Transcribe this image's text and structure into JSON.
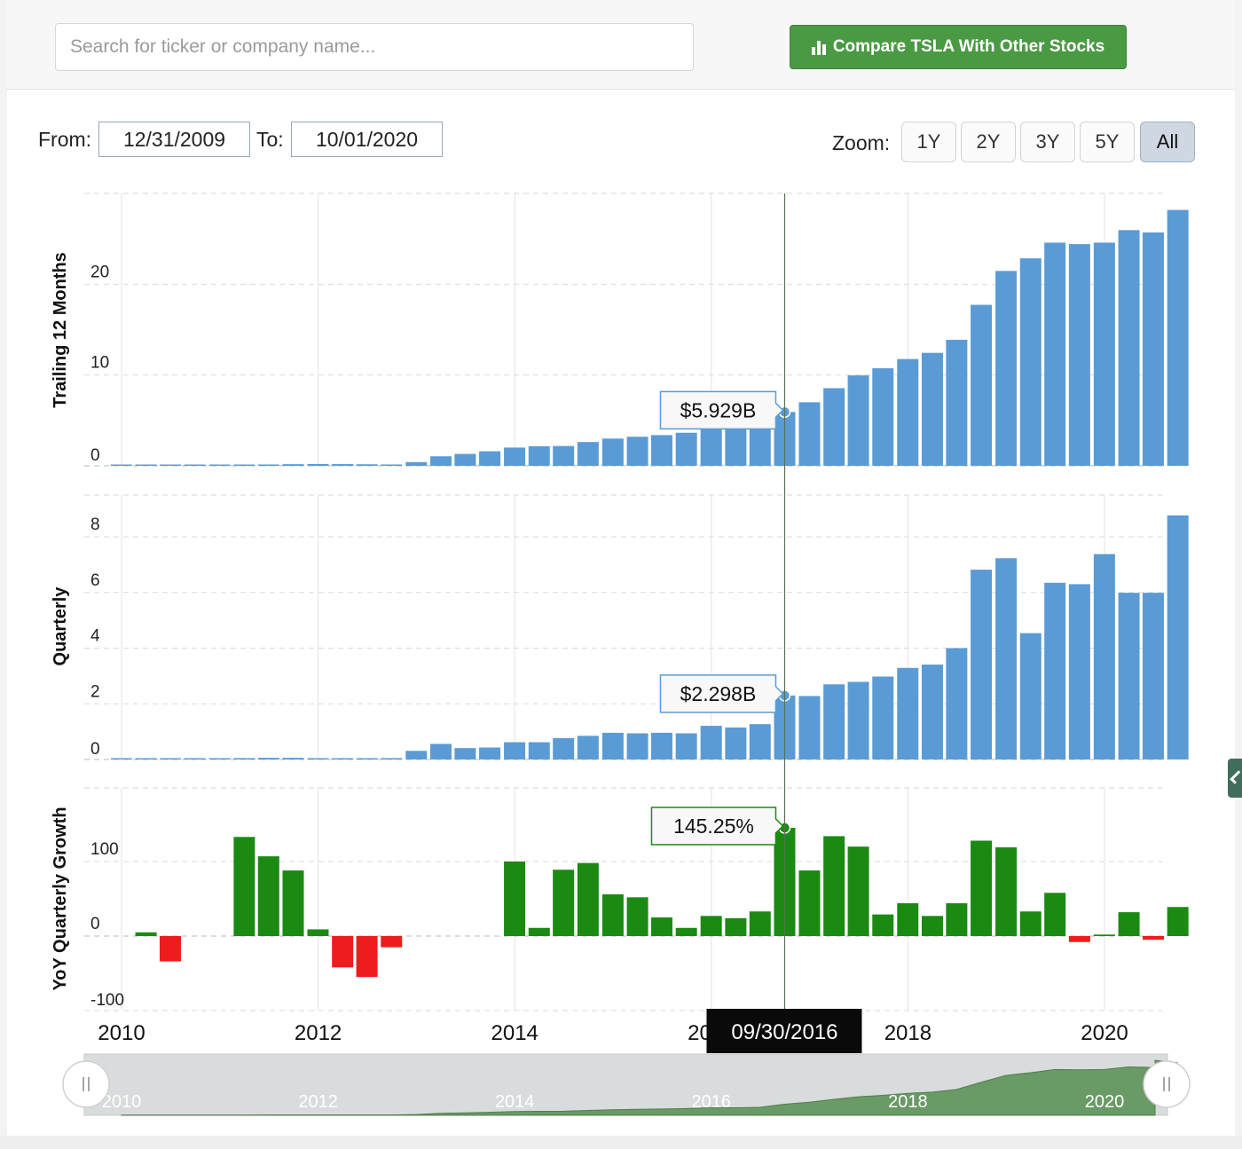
{
  "search": {
    "placeholder": "Search for ticker or company name..."
  },
  "compare_button": {
    "label": "Compare TSLA With Other Stocks",
    "icon": "bar-chart-icon"
  },
  "range": {
    "from_label": "From:",
    "from_value": "12/31/2009",
    "to_label": "To:",
    "to_value": "10/01/2020"
  },
  "zoom": {
    "label": "Zoom:",
    "options": [
      "1Y",
      "2Y",
      "3Y",
      "5Y",
      "All"
    ],
    "active": "All"
  },
  "colors": {
    "blue": "#5b9bd5",
    "green": "#1b8a12",
    "red": "#ee1c1c",
    "nav_fill": "#6a9a66",
    "button_green": "#4a9a43"
  },
  "chart_data": [
    {
      "type": "bar",
      "ylabel": "Trailing 12 Months",
      "ylim": [
        0,
        30
      ],
      "yticks": [
        0,
        10,
        20
      ],
      "dates": [
        "12/31/2009",
        "03/31/2010",
        "06/30/2010",
        "09/30/2010",
        "12/31/2010",
        "03/31/2011",
        "06/30/2011",
        "09/30/2011",
        "12/31/2011",
        "03/31/2012",
        "06/30/2012",
        "09/30/2012",
        "12/31/2012",
        "03/31/2013",
        "06/30/2013",
        "09/30/2013",
        "12/31/2013",
        "03/31/2014",
        "06/30/2014",
        "09/30/2014",
        "12/31/2014",
        "03/31/2015",
        "06/30/2015",
        "09/30/2015",
        "12/31/2015",
        "03/31/2016",
        "06/30/2016",
        "09/30/2016",
        "12/31/2016",
        "03/31/2017",
        "06/30/2017",
        "09/30/2017",
        "12/31/2017",
        "03/31/2018",
        "06/30/2018",
        "09/30/2018",
        "12/31/2018",
        "03/31/2019",
        "06/30/2019",
        "09/30/2019",
        "12/31/2019",
        "03/31/2020",
        "06/30/2020",
        "09/30/2020"
      ],
      "values": [
        0.11,
        0.11,
        0.11,
        0.12,
        0.12,
        0.13,
        0.15,
        0.18,
        0.2,
        0.19,
        0.17,
        0.15,
        0.41,
        1.05,
        1.31,
        1.6,
        2.01,
        2.15,
        2.18,
        2.62,
        3.0,
        3.2,
        3.38,
        3.64,
        4.05,
        4.04,
        4.27,
        5.93,
        7.0,
        8.55,
        9.96,
        10.74,
        11.76,
        12.44,
        13.88,
        17.73,
        21.46,
        22.85,
        24.58,
        24.42,
        24.58,
        25.96,
        25.7,
        28.18
      ],
      "highlight": {
        "date": "09/30/2016",
        "label": "$5.929B"
      }
    },
    {
      "type": "bar",
      "ylabel": "Quarterly",
      "ylim": [
        0,
        9.5
      ],
      "yticks": [
        0,
        2,
        4,
        6,
        8
      ],
      "dates": [
        "12/31/2009",
        "03/31/2010",
        "06/30/2010",
        "09/30/2010",
        "12/31/2010",
        "03/31/2011",
        "06/30/2011",
        "09/30/2011",
        "12/31/2011",
        "03/31/2012",
        "06/30/2012",
        "09/30/2012",
        "12/31/2012",
        "03/31/2013",
        "06/30/2013",
        "09/30/2013",
        "12/31/2013",
        "03/31/2014",
        "06/30/2014",
        "09/30/2014",
        "12/31/2014",
        "03/31/2015",
        "06/30/2015",
        "09/30/2015",
        "12/31/2015",
        "03/31/2016",
        "06/30/2016",
        "09/30/2016",
        "12/31/2016",
        "03/31/2017",
        "06/30/2017",
        "09/30/2017",
        "12/31/2017",
        "03/31/2018",
        "06/30/2018",
        "09/30/2018",
        "12/31/2018",
        "03/31/2019",
        "06/30/2019",
        "09/30/2019",
        "12/31/2019",
        "03/31/2020",
        "06/30/2020",
        "09/30/2020"
      ],
      "values": [
        0.02,
        0.02,
        0.03,
        0.03,
        0.04,
        0.05,
        0.06,
        0.06,
        0.04,
        0.03,
        0.03,
        0.05,
        0.31,
        0.56,
        0.41,
        0.43,
        0.62,
        0.62,
        0.77,
        0.85,
        0.96,
        0.94,
        0.96,
        0.94,
        1.21,
        1.15,
        1.27,
        2.3,
        2.28,
        2.7,
        2.79,
        2.98,
        3.29,
        3.41,
        4.0,
        6.82,
        7.23,
        4.54,
        6.35,
        6.3,
        7.38,
        5.99,
        5.99,
        8.77
      ],
      "highlight": {
        "date": "09/30/2016",
        "label": "$2.298B"
      }
    },
    {
      "type": "bar",
      "ylabel": "YoY Quarterly Growth",
      "ylim": [
        -100,
        200
      ],
      "yticks": [
        -100,
        0,
        100
      ],
      "dates": [
        "12/31/2009",
        "03/31/2010",
        "06/30/2010",
        "09/30/2010",
        "12/31/2010",
        "03/31/2011",
        "06/30/2011",
        "09/30/2011",
        "12/31/2011",
        "03/31/2012",
        "06/30/2012",
        "09/30/2012",
        "12/31/2012",
        "03/31/2013",
        "06/30/2013",
        "09/30/2013",
        "12/31/2013",
        "03/31/2014",
        "06/30/2014",
        "09/30/2014",
        "12/31/2014",
        "03/31/2015",
        "06/30/2015",
        "09/30/2015",
        "12/31/2015",
        "03/31/2016",
        "06/30/2016",
        "09/30/2016",
        "12/31/2016",
        "03/31/2017",
        "06/30/2017",
        "09/30/2017",
        "12/31/2017",
        "03/31/2018",
        "06/30/2018",
        "09/30/2018",
        "12/31/2018",
        "03/31/2019",
        "06/30/2019",
        "09/30/2019",
        "12/31/2019",
        "03/31/2020",
        "06/30/2020",
        "09/30/2020"
      ],
      "values": [
        null,
        5,
        -34,
        null,
        null,
        133,
        107,
        88,
        9,
        -42,
        -55,
        -15,
        null,
        null,
        null,
        null,
        100,
        11,
        89,
        98,
        56,
        52,
        25,
        11,
        27,
        24,
        33,
        145.25,
        88,
        134,
        120,
        29,
        44,
        27,
        44,
        128,
        119,
        33,
        58,
        -8,
        2,
        32,
        -5,
        39
      ],
      "highlight": {
        "date": "09/30/2016",
        "label": "145.25%"
      }
    }
  ],
  "x_axis": {
    "labels": [
      "2010",
      "2012",
      "2014",
      "2016",
      "2018",
      "2020"
    ],
    "crosshair_date": "09/30/2016"
  },
  "navigator": {
    "labels": [
      "2010",
      "2012",
      "2014",
      "2016",
      "2018",
      "2020"
    ]
  }
}
